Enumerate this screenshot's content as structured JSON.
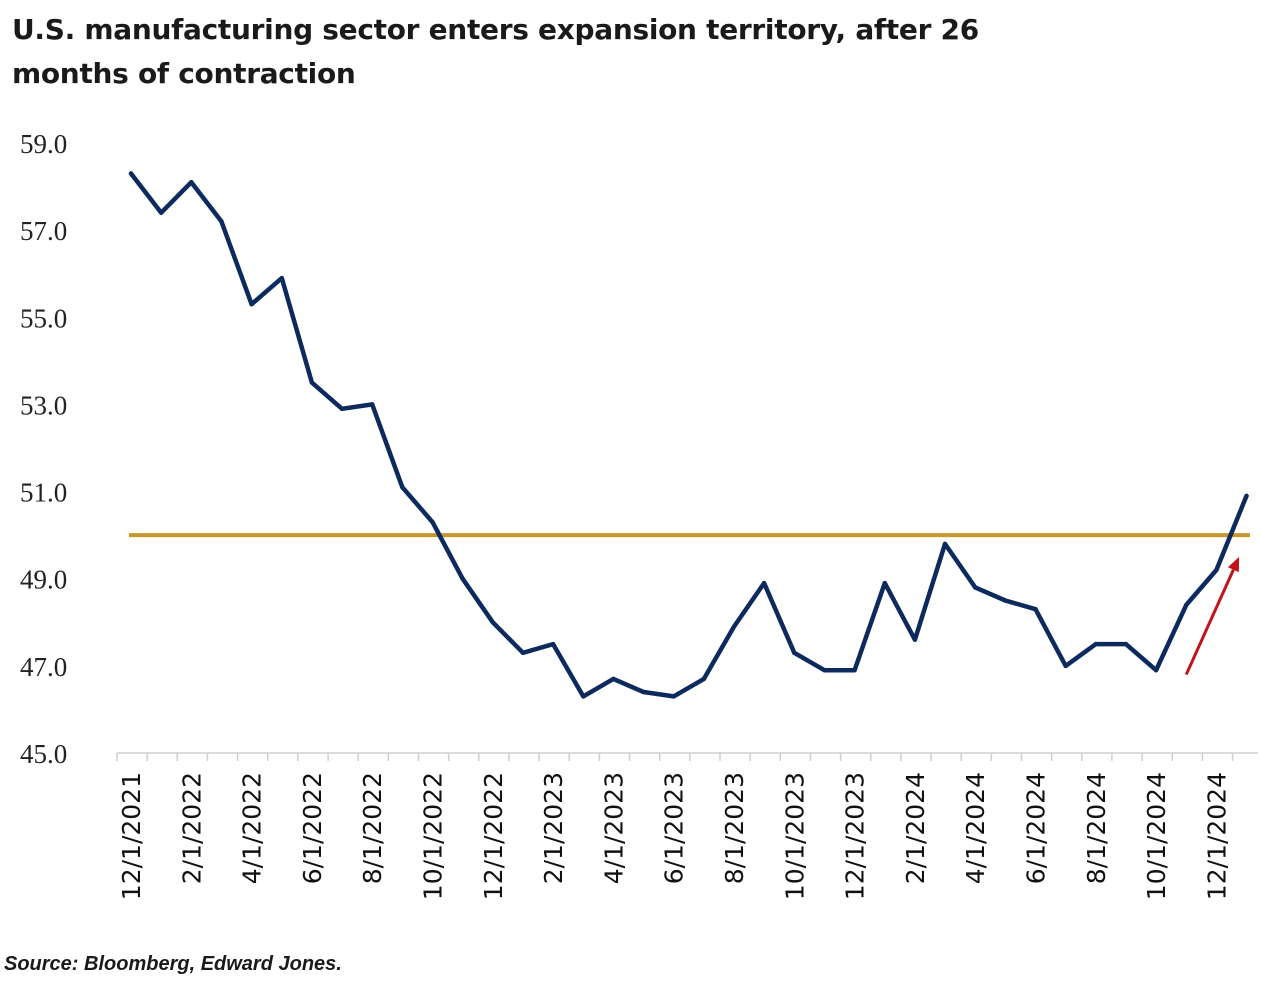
{
  "chart_data": {
    "type": "line",
    "title": "U.S. manufacturing sector enters expansion territory, after 26 months of contraction",
    "source": "Source: Bloomberg, Edward Jones.",
    "ylim": [
      45.0,
      59.0
    ],
    "y_ticks": [
      "59.0",
      "57.0",
      "55.0",
      "53.0",
      "51.0",
      "49.0",
      "47.0",
      "45.0"
    ],
    "x_tick_labels": [
      "12/1/2021",
      "2/1/2022",
      "4/1/2022",
      "6/1/2022",
      "8/1/2022",
      "10/1/2022",
      "12/1/2022",
      "2/1/2023",
      "4/1/2023",
      "6/1/2023",
      "8/1/2023",
      "10/1/2023",
      "12/1/2023",
      "2/1/2024",
      "4/1/2024",
      "6/1/2024",
      "8/1/2024",
      "10/1/2024",
      "12/1/2024"
    ],
    "threshold": {
      "value": 50.0,
      "color": "#c8962e"
    },
    "series": [
      {
        "color": "#0c2a5e",
        "x": [
          "12/1/2021",
          "1/1/2022",
          "2/1/2022",
          "3/1/2022",
          "4/1/2022",
          "5/1/2022",
          "6/1/2022",
          "7/1/2022",
          "8/1/2022",
          "9/1/2022",
          "10/1/2022",
          "11/1/2022",
          "12/1/2022",
          "1/1/2023",
          "2/1/2023",
          "3/1/2023",
          "4/1/2023",
          "5/1/2023",
          "6/1/2023",
          "7/1/2023",
          "8/1/2023",
          "9/1/2023",
          "10/1/2023",
          "11/1/2023",
          "12/1/2023",
          "1/1/2024",
          "2/1/2024",
          "3/1/2024",
          "4/1/2024",
          "5/1/2024",
          "6/1/2024",
          "7/1/2024",
          "8/1/2024",
          "9/1/2024",
          "10/1/2024",
          "11/1/2024",
          "12/1/2024",
          "1/1/2025"
        ],
        "values": [
          58.3,
          57.4,
          58.1,
          57.2,
          55.3,
          55.9,
          53.5,
          52.9,
          53.0,
          51.1,
          50.3,
          49.0,
          48.0,
          47.3,
          47.5,
          46.3,
          46.7,
          46.4,
          46.3,
          46.7,
          47.9,
          48.9,
          47.3,
          46.9,
          46.9,
          48.9,
          47.6,
          49.8,
          48.8,
          48.5,
          48.3,
          47.0,
          47.5,
          47.5,
          46.9,
          48.4,
          49.2,
          50.9
        ]
      }
    ],
    "arrow": {
      "color": "#c0141a",
      "from": {
        "x": "11/1/2024",
        "y": 46.8
      },
      "to": {
        "x": "12/24/2024",
        "y": 49.5
      }
    }
  }
}
